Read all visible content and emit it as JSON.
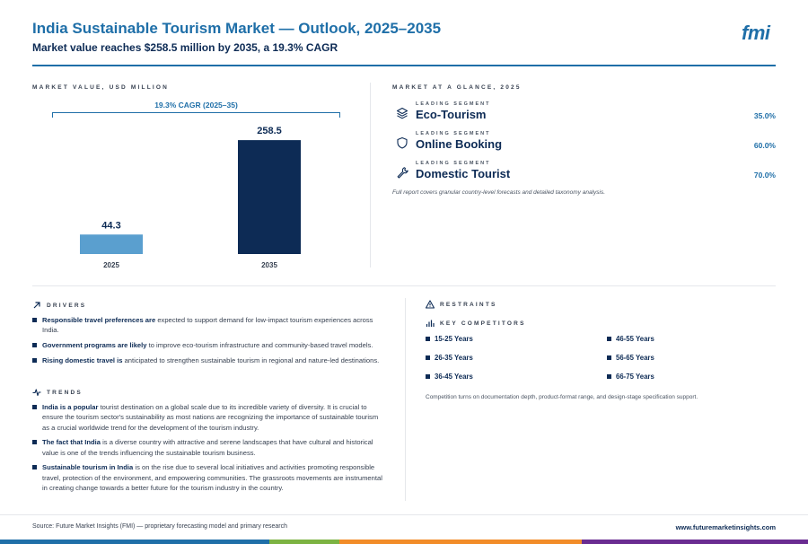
{
  "header": {
    "title": "India Sustainable Tourism Market — Outlook, 2025–2035",
    "subtitle": "Market value reaches $258.5 million by 2035, a 19.3% CAGR",
    "logo": "fmi"
  },
  "chart_section": {
    "label": "MARKET VALUE, USD MILLION",
    "cagr_label": "19.3% CAGR (2025–35)"
  },
  "chart_data": {
    "type": "bar",
    "categories": [
      "2025",
      "2035"
    ],
    "values": [
      44.3,
      258.5
    ],
    "value_labels": [
      "44.3",
      "258.5"
    ],
    "colors": [
      "#5a9fcf",
      "#0d2b55"
    ],
    "title": "MARKET VALUE, USD MILLION",
    "xlabel": "",
    "ylabel": "",
    "ylim": [
      0,
      275
    ]
  },
  "glance": {
    "label": "MARKET AT A GLANCE, 2025",
    "rows": [
      {
        "icon": "layers-icon",
        "tag": "LEADING SEGMENT",
        "name": "Eco-Tourism",
        "share": "35.0%"
      },
      {
        "icon": "shield-icon",
        "tag": "LEADING SEGMENT",
        "name": "Online Booking",
        "share": "60.0%"
      },
      {
        "icon": "wrench-icon",
        "tag": "LEADING SEGMENT",
        "name": "Domestic Tourist",
        "share": "70.0%"
      }
    ],
    "note": "Full report covers granular country-level forecasts and detailed taxonomy analysis."
  },
  "drivers": {
    "label": "DRIVERS",
    "items": [
      {
        "bold": "Responsible travel preferences are",
        "text": " expected to support demand for low-impact tourism experiences across India."
      },
      {
        "bold": "Government programs are likely",
        "text": " to improve eco-tourism infrastructure and community-based travel models."
      },
      {
        "bold": "Rising domestic travel is",
        "text": " anticipated to strengthen sustainable tourism in regional and nature-led destinations."
      }
    ]
  },
  "trends": {
    "label": "TRENDS",
    "items": [
      {
        "bold": "India is a popular",
        "text": " tourist destination on a global scale due to its incredible variety of diversity. It is crucial to ensure the tourism sector's sustainability as most nations are recognizing the importance of sustainable tourism as a crucial worldwide trend for the development of the tourism industry."
      },
      {
        "bold": "The fact that India",
        "text": " is a diverse country with attractive and serene landscapes that have cultural and historical value is one of the trends influencing the sustainable tourism business."
      },
      {
        "bold": "Sustainable tourism in India",
        "text": " is on the rise due to several local initiatives and activities promoting responsible travel, protection of the environment, and empowering communities. The grassroots movements are instrumental in creating change towards a better future for the tourism industry in the country."
      }
    ]
  },
  "restraints": {
    "label": "RESTRAINTS"
  },
  "competitors": {
    "label": "KEY COMPETITORS",
    "items": [
      "15-25 Years",
      "46-55 Years",
      "26-35 Years",
      "56-65 Years",
      "36-45 Years",
      "66-75 Years"
    ],
    "note": "Competition turns on documentation depth, product-format range, and design-stage specification support."
  },
  "footer": {
    "source": "Source: Future Market Insights (FMI) — proprietary forecasting model and primary research",
    "url": "www.futuremarketinsights.com"
  },
  "colors": {
    "primary": "#1f6fa8",
    "navy": "#0d2b55",
    "light_bar": "#5a9fcf",
    "stripe": [
      "#1f6fa8",
      "#7cb342",
      "#f28c28",
      "#6a2c91"
    ]
  }
}
